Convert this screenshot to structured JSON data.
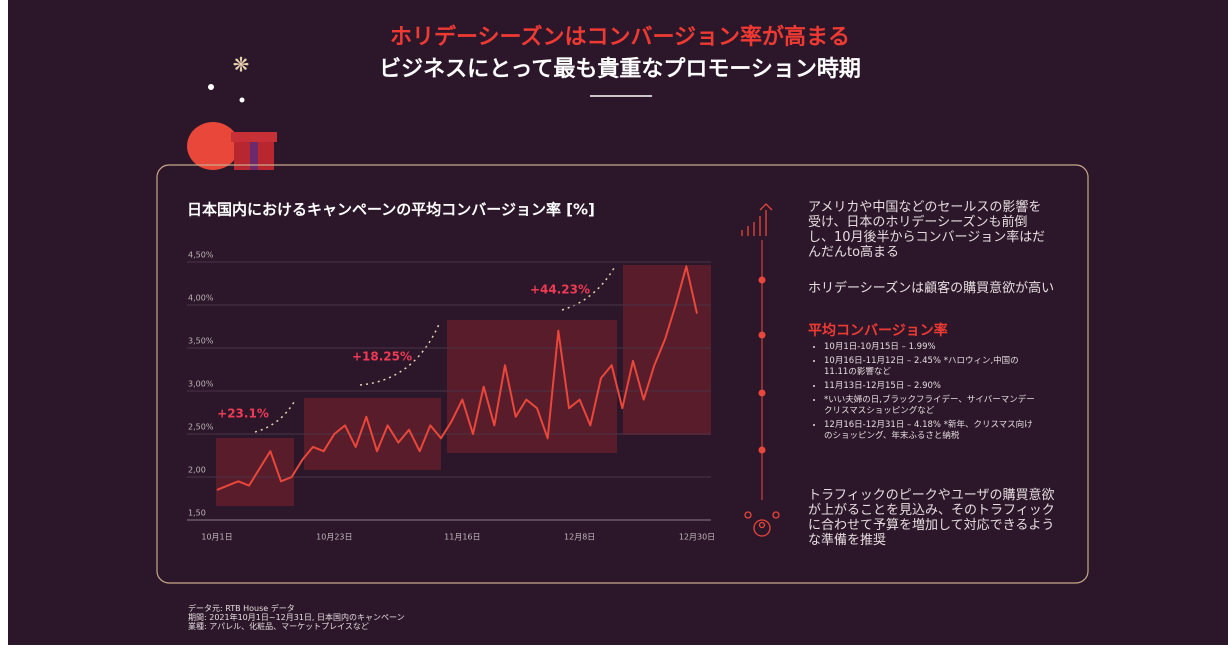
{
  "header": {
    "title": "ホリデーシーズンはコンバージョン率が高まる",
    "subtitle": "ビジネスにとって最も貴重なプロモーション時期"
  },
  "chart_data": {
    "type": "line",
    "title": "日本国内におけるキャンペーンの平均コンバージョン率 [%]",
    "categories": [
      "10月1日",
      null,
      null,
      null,
      null,
      null,
      null,
      null,
      null,
      null,
      null,
      "10月23日",
      null,
      null,
      null,
      null,
      null,
      null,
      null,
      null,
      null,
      null,
      null,
      "11月16日",
      null,
      null,
      null,
      null,
      null,
      null,
      null,
      null,
      null,
      null,
      "12月8日",
      null,
      null,
      null,
      null,
      null,
      null,
      null,
      null,
      null,
      null,
      "12月30日"
    ],
    "values": [
      1.85,
      1.9,
      1.95,
      1.9,
      2.1,
      2.3,
      1.95,
      2.0,
      2.2,
      2.35,
      2.3,
      2.5,
      2.6,
      2.35,
      2.7,
      2.3,
      2.6,
      2.4,
      2.55,
      2.3,
      2.6,
      2.45,
      2.65,
      2.9,
      2.5,
      3.05,
      2.6,
      3.3,
      2.7,
      2.9,
      2.8,
      2.45,
      3.7,
      2.8,
      2.9,
      2.6,
      3.15,
      3.3,
      2.8,
      3.35,
      2.9,
      3.3,
      3.6,
      4.0,
      4.45,
      3.9
    ],
    "color": "#e8473a",
    "ylim": [
      1.5,
      4.5
    ],
    "yticks": [
      {
        "value": 1.5,
        "label": "1,50"
      },
      {
        "value": 2.0,
        "label": "2,00"
      },
      {
        "value": 2.5,
        "label": "2,50%"
      },
      {
        "value": 3.0,
        "label": "3,00%"
      },
      {
        "value": 3.5,
        "label": "3,50%"
      },
      {
        "value": 4.0,
        "label": "4,00%"
      },
      {
        "value": 4.5,
        "label": "4,50%"
      }
    ],
    "grid": true,
    "annotations": [
      "+23.1%",
      "+18.25%",
      "+44.23%"
    ]
  },
  "sidebar": {
    "intro": "アメリカや中国などのセールスの影響を受け、日本のホリデーシーズンも前倒し、10月後半からコンバージョン率はだんだんto高まる",
    "note": "ホリデーシーズンは顧客の購買意欲が高い",
    "heading": "平均コンバージョン率",
    "items": [
      "10月1日-10月15日 – 1.99%",
      "10月16日-11月12日 – 2.45% *ハロウィン,中国の11.11の影響など",
      "11月13日-12月15日 – 2.90%",
      "*いい夫婦の日,ブラックフライデー、サイバーマンデークリスマスショッピングなど",
      "12月16日-12月31日 – 4.18% *新年、クリスマス向けのショッピング、年末ふるさと納税"
    ],
    "conclusion": "トラフィックのピークやユーザの購買意欲が上がることを見込み、そのトラフィックに合わせて予算を増加して対応できるような準備を推奨"
  },
  "footer": [
    "データ元: RTB House データ",
    "期間: 2021年10月1日~12月31日, 日本国内のキャンペーン",
    "業種: アパレル、化粧品、マーケットプレイスなど"
  ]
}
